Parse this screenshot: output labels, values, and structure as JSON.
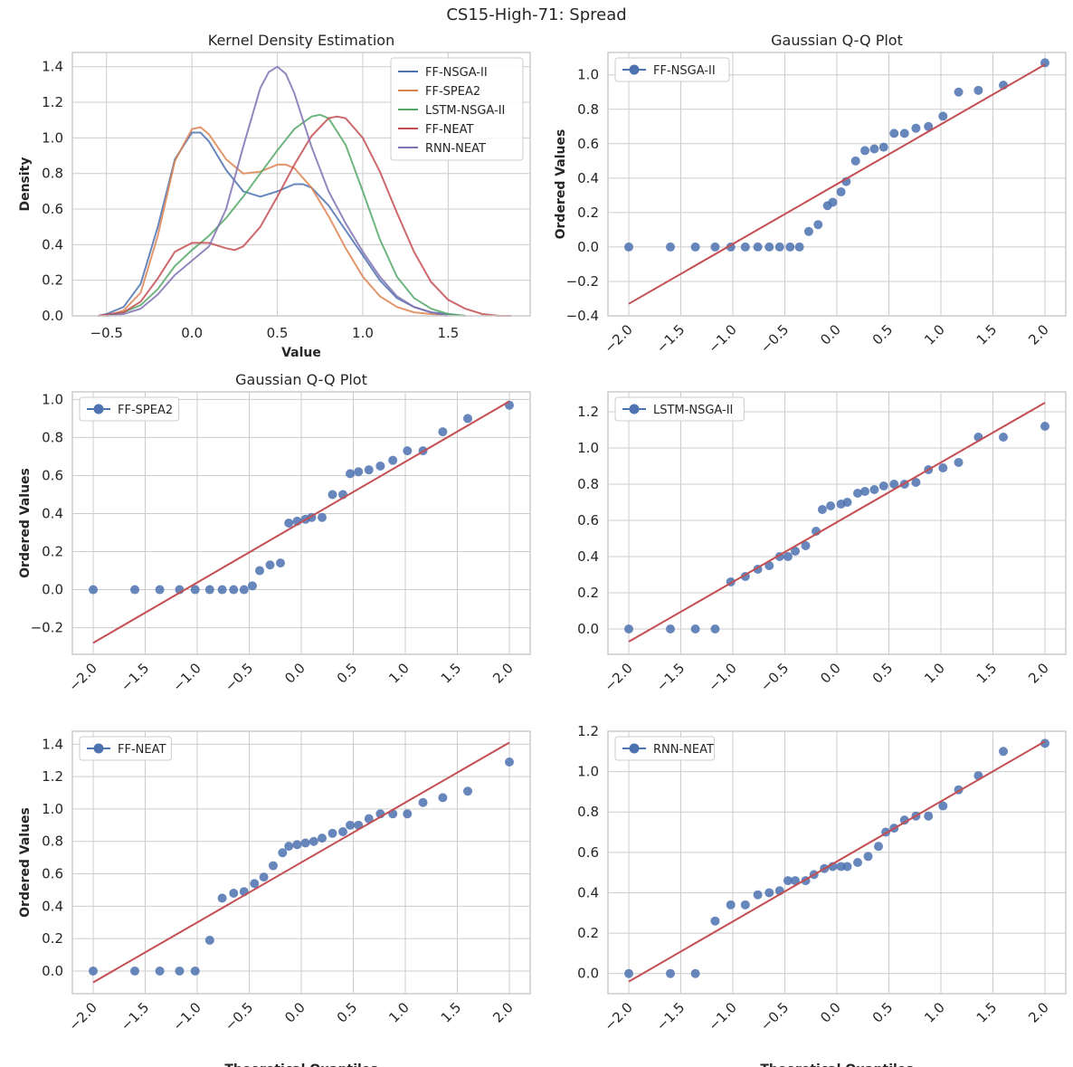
{
  "figure": {
    "suptitle": "CS15-High-71: Spread"
  },
  "colors": {
    "blue": "#4c72b0",
    "orange": "#dd8452",
    "green": "#55a868",
    "red": "#c44e52",
    "purple": "#8172b3",
    "grid": "#cccccc",
    "spine": "#cccccc"
  },
  "chart_data": [
    {
      "type": "line",
      "title": "Kernel Density Estimation",
      "xlabel": "Value",
      "ylabel": "Density",
      "xlim": [
        -0.7,
        1.98
      ],
      "ylim": [
        0,
        1.48
      ],
      "xticks": [
        -0.5,
        0.0,
        0.5,
        1.0,
        1.5
      ],
      "yticks": [
        0.0,
        0.2,
        0.4,
        0.6,
        0.8,
        1.0,
        1.2,
        1.4
      ],
      "grid": true,
      "legend": "top-right",
      "series": [
        {
          "name": "FF-NSGA-II",
          "color": "#4c72b0",
          "x": [
            -0.55,
            -0.5,
            -0.4,
            -0.3,
            -0.2,
            -0.1,
            0.0,
            0.05,
            0.1,
            0.2,
            0.3,
            0.4,
            0.5,
            0.6,
            0.65,
            0.7,
            0.8,
            0.9,
            1.0,
            1.1,
            1.2,
            1.3,
            1.4,
            1.5,
            1.6
          ],
          "y": [
            0.0,
            0.01,
            0.05,
            0.18,
            0.5,
            0.88,
            1.03,
            1.03,
            0.98,
            0.82,
            0.7,
            0.67,
            0.7,
            0.74,
            0.74,
            0.72,
            0.62,
            0.48,
            0.34,
            0.2,
            0.1,
            0.05,
            0.02,
            0.01,
            0.0
          ]
        },
        {
          "name": "FF-SPEA2",
          "color": "#dd8452",
          "x": [
            -0.55,
            -0.5,
            -0.4,
            -0.3,
            -0.2,
            -0.1,
            0.0,
            0.05,
            0.1,
            0.2,
            0.3,
            0.4,
            0.5,
            0.55,
            0.6,
            0.7,
            0.8,
            0.9,
            1.0,
            1.1,
            1.2,
            1.3,
            1.4,
            1.5
          ],
          "y": [
            0.0,
            0.0,
            0.03,
            0.13,
            0.45,
            0.87,
            1.05,
            1.06,
            1.02,
            0.88,
            0.8,
            0.81,
            0.85,
            0.85,
            0.83,
            0.72,
            0.56,
            0.38,
            0.22,
            0.11,
            0.05,
            0.02,
            0.01,
            0.0
          ]
        },
        {
          "name": "LSTM-NSGA-II",
          "color": "#55a868",
          "x": [
            -0.5,
            -0.4,
            -0.3,
            -0.2,
            -0.1,
            0.0,
            0.1,
            0.2,
            0.3,
            0.4,
            0.5,
            0.6,
            0.7,
            0.75,
            0.8,
            0.9,
            1.0,
            1.1,
            1.2,
            1.3,
            1.4,
            1.5,
            1.6
          ],
          "y": [
            0.0,
            0.02,
            0.06,
            0.15,
            0.28,
            0.37,
            0.45,
            0.55,
            0.67,
            0.8,
            0.93,
            1.05,
            1.12,
            1.13,
            1.11,
            0.96,
            0.7,
            0.43,
            0.22,
            0.1,
            0.04,
            0.01,
            0.0
          ]
        },
        {
          "name": "FF-NEAT",
          "color": "#c44e52",
          "x": [
            -0.55,
            -0.4,
            -0.3,
            -0.2,
            -0.1,
            0.0,
            0.05,
            0.1,
            0.2,
            0.25,
            0.3,
            0.4,
            0.5,
            0.6,
            0.7,
            0.8,
            0.85,
            0.9,
            1.0,
            1.1,
            1.2,
            1.3,
            1.4,
            1.5,
            1.6,
            1.7,
            1.8,
            1.87
          ],
          "y": [
            0.0,
            0.02,
            0.08,
            0.21,
            0.36,
            0.41,
            0.41,
            0.41,
            0.38,
            0.37,
            0.39,
            0.5,
            0.67,
            0.85,
            1.01,
            1.11,
            1.12,
            1.11,
            1.0,
            0.81,
            0.58,
            0.36,
            0.19,
            0.09,
            0.04,
            0.01,
            0.0,
            0.0
          ]
        },
        {
          "name": "RNN-NEAT",
          "color": "#8172b3",
          "x": [
            -0.5,
            -0.4,
            -0.3,
            -0.2,
            -0.1,
            0.0,
            0.1,
            0.2,
            0.3,
            0.4,
            0.45,
            0.5,
            0.55,
            0.6,
            0.7,
            0.8,
            0.9,
            1.0,
            1.1,
            1.2,
            1.3,
            1.4,
            1.5
          ],
          "y": [
            0.0,
            0.01,
            0.04,
            0.12,
            0.23,
            0.31,
            0.39,
            0.6,
            0.95,
            1.28,
            1.37,
            1.4,
            1.36,
            1.25,
            0.95,
            0.7,
            0.52,
            0.36,
            0.22,
            0.11,
            0.05,
            0.02,
            0.0
          ]
        }
      ]
    },
    {
      "type": "scatter",
      "title": "Gaussian Q-Q Plot",
      "xlabel": "",
      "ylabel": "Ordered Values",
      "xlim": [
        -2.2,
        2.2
      ],
      "ylim": [
        -0.4,
        1.13
      ],
      "xticks": [
        -2.0,
        -1.5,
        -1.0,
        -0.5,
        0.0,
        0.5,
        1.0,
        1.5,
        2.0
      ],
      "yticks": [
        -0.4,
        -0.2,
        0.0,
        0.2,
        0.4,
        0.6,
        0.8,
        1.0
      ],
      "grid": true,
      "legend": "top-left",
      "series": [
        {
          "name": "FF-NSGA-II",
          "color": "#4c72b0",
          "x": [
            -2.0,
            -1.6,
            -1.36,
            -1.17,
            -1.02,
            -0.88,
            -0.76,
            -0.65,
            -0.55,
            -0.45,
            -0.36,
            -0.27,
            -0.18,
            -0.09,
            -0.04,
            0.04,
            0.09,
            0.18,
            0.27,
            0.36,
            0.45,
            0.55,
            0.65,
            0.76,
            0.88,
            1.02,
            1.17,
            1.36,
            1.6,
            2.0
          ],
          "y": [
            0.0,
            0.0,
            0.0,
            0.0,
            0.0,
            0.0,
            0.0,
            0.0,
            0.0,
            0.0,
            0.0,
            0.09,
            0.13,
            0.24,
            0.26,
            0.32,
            0.38,
            0.5,
            0.56,
            0.57,
            0.58,
            0.66,
            0.66,
            0.69,
            0.7,
            0.76,
            0.9,
            0.91,
            0.94,
            1.07
          ]
        },
        {
          "name": "fit",
          "color": "#c44e52",
          "x": [
            -2.0,
            2.0
          ],
          "y": [
            -0.33,
            1.06
          ]
        }
      ]
    },
    {
      "type": "scatter",
      "title": "Gaussian Q-Q Plot",
      "xlabel": "",
      "ylabel": "Ordered Values",
      "xlim": [
        -2.2,
        2.2
      ],
      "ylim": [
        -0.34,
        1.04
      ],
      "xticks": [
        -2.0,
        -1.5,
        -1.0,
        -0.5,
        0.0,
        0.5,
        1.0,
        1.5,
        2.0
      ],
      "yticks": [
        -0.2,
        0.0,
        0.2,
        0.4,
        0.6,
        0.8,
        1.0
      ],
      "grid": true,
      "legend": "top-left",
      "series": [
        {
          "name": "FF-SPEA2",
          "color": "#4c72b0",
          "x": [
            -2.0,
            -1.6,
            -1.36,
            -1.17,
            -1.02,
            -0.88,
            -0.76,
            -0.65,
            -0.55,
            -0.47,
            -0.4,
            -0.3,
            -0.2,
            -0.12,
            -0.04,
            0.04,
            0.1,
            0.2,
            0.3,
            0.4,
            0.47,
            0.55,
            0.65,
            0.76,
            0.88,
            1.02,
            1.17,
            1.36,
            1.6,
            2.0
          ],
          "y": [
            0.0,
            0.0,
            0.0,
            0.0,
            0.0,
            0.0,
            0.0,
            0.0,
            0.0,
            0.02,
            0.1,
            0.13,
            0.14,
            0.35,
            0.36,
            0.37,
            0.38,
            0.38,
            0.5,
            0.5,
            0.61,
            0.62,
            0.63,
            0.65,
            0.68,
            0.73,
            0.73,
            0.83,
            0.9,
            0.97
          ]
        },
        {
          "name": "fit",
          "color": "#c44e52",
          "x": [
            -2.0,
            2.0
          ],
          "y": [
            -0.28,
            0.99
          ]
        }
      ]
    },
    {
      "type": "scatter",
      "title": "",
      "xlabel": "",
      "ylabel": "",
      "xlim": [
        -2.2,
        2.2
      ],
      "ylim": [
        -0.14,
        1.31
      ],
      "xticks": [
        -2.0,
        -1.5,
        -1.0,
        -0.5,
        0.0,
        0.5,
        1.0,
        1.5,
        2.0
      ],
      "yticks": [
        0.0,
        0.2,
        0.4,
        0.6,
        0.8,
        1.0,
        1.2
      ],
      "grid": true,
      "legend": "top-left",
      "series": [
        {
          "name": "LSTM-NSGA-II",
          "color": "#4c72b0",
          "x": [
            -2.0,
            -1.6,
            -1.36,
            -1.17,
            -1.02,
            -0.88,
            -0.76,
            -0.65,
            -0.55,
            -0.47,
            -0.4,
            -0.3,
            -0.2,
            -0.14,
            -0.06,
            0.04,
            0.1,
            0.2,
            0.27,
            0.36,
            0.45,
            0.55,
            0.65,
            0.76,
            0.88,
            1.02,
            1.17,
            1.36,
            1.6,
            2.0
          ],
          "y": [
            0.0,
            0.0,
            0.0,
            0.0,
            0.26,
            0.29,
            0.33,
            0.35,
            0.4,
            0.4,
            0.43,
            0.46,
            0.54,
            0.66,
            0.68,
            0.69,
            0.7,
            0.75,
            0.76,
            0.77,
            0.79,
            0.8,
            0.8,
            0.81,
            0.88,
            0.89,
            0.92,
            1.06,
            1.06,
            1.12
          ]
        },
        {
          "name": "fit",
          "color": "#c44e52",
          "x": [
            -2.0,
            2.0
          ],
          "y": [
            -0.07,
            1.25
          ]
        }
      ]
    },
    {
      "type": "scatter",
      "title": "",
      "xlabel": "Theoretical Quantiles",
      "ylabel": "Ordered Values",
      "xlim": [
        -2.2,
        2.2
      ],
      "ylim": [
        -0.14,
        1.48
      ],
      "xticks": [
        -2.0,
        -1.5,
        -1.0,
        -0.5,
        0.0,
        0.5,
        1.0,
        1.5,
        2.0
      ],
      "yticks": [
        0.0,
        0.2,
        0.4,
        0.6,
        0.8,
        1.0,
        1.2,
        1.4
      ],
      "grid": true,
      "legend": "top-left",
      "series": [
        {
          "name": "FF-NEAT",
          "color": "#4c72b0",
          "x": [
            -2.0,
            -1.6,
            -1.36,
            -1.17,
            -1.02,
            -0.88,
            -0.76,
            -0.65,
            -0.55,
            -0.45,
            -0.36,
            -0.27,
            -0.18,
            -0.12,
            -0.04,
            0.04,
            0.12,
            0.2,
            0.3,
            0.4,
            0.47,
            0.55,
            0.65,
            0.76,
            0.88,
            1.02,
            1.17,
            1.36,
            1.6,
            2.0
          ],
          "y": [
            0.0,
            0.0,
            0.0,
            0.0,
            0.0,
            0.19,
            0.45,
            0.48,
            0.49,
            0.54,
            0.58,
            0.65,
            0.73,
            0.77,
            0.78,
            0.79,
            0.8,
            0.82,
            0.85,
            0.86,
            0.9,
            0.9,
            0.94,
            0.97,
            0.97,
            0.97,
            1.04,
            1.07,
            1.11,
            1.29
          ]
        },
        {
          "name": "fit",
          "color": "#c44e52",
          "x": [
            -2.0,
            2.0
          ],
          "y": [
            -0.07,
            1.41
          ]
        }
      ]
    },
    {
      "type": "scatter",
      "title": "",
      "xlabel": "Theoretical Quantiles",
      "ylabel": "",
      "xlim": [
        -2.2,
        2.2
      ],
      "ylim": [
        -0.1,
        1.2
      ],
      "xticks": [
        -2.0,
        -1.5,
        -1.0,
        -0.5,
        0.0,
        0.5,
        1.0,
        1.5,
        2.0
      ],
      "yticks": [
        0.0,
        0.2,
        0.4,
        0.6,
        0.8,
        1.0,
        1.2
      ],
      "grid": true,
      "legend": "top-left",
      "series": [
        {
          "name": "RNN-NEAT",
          "color": "#4c72b0",
          "x": [
            -2.0,
            -1.6,
            -1.36,
            -1.17,
            -1.02,
            -0.88,
            -0.76,
            -0.65,
            -0.55,
            -0.47,
            -0.4,
            -0.3,
            -0.22,
            -0.12,
            -0.04,
            0.04,
            0.1,
            0.2,
            0.3,
            0.4,
            0.47,
            0.55,
            0.65,
            0.76,
            0.88,
            1.02,
            1.17,
            1.36,
            1.6,
            2.0
          ],
          "y": [
            0.0,
            0.0,
            0.0,
            0.26,
            0.34,
            0.34,
            0.39,
            0.4,
            0.41,
            0.46,
            0.46,
            0.46,
            0.49,
            0.52,
            0.53,
            0.53,
            0.53,
            0.55,
            0.58,
            0.63,
            0.7,
            0.72,
            0.76,
            0.78,
            0.78,
            0.83,
            0.91,
            0.98,
            1.1,
            1.14
          ]
        },
        {
          "name": "fit",
          "color": "#c44e52",
          "x": [
            -2.0,
            2.0
          ],
          "y": [
            -0.04,
            1.15
          ]
        }
      ]
    }
  ]
}
